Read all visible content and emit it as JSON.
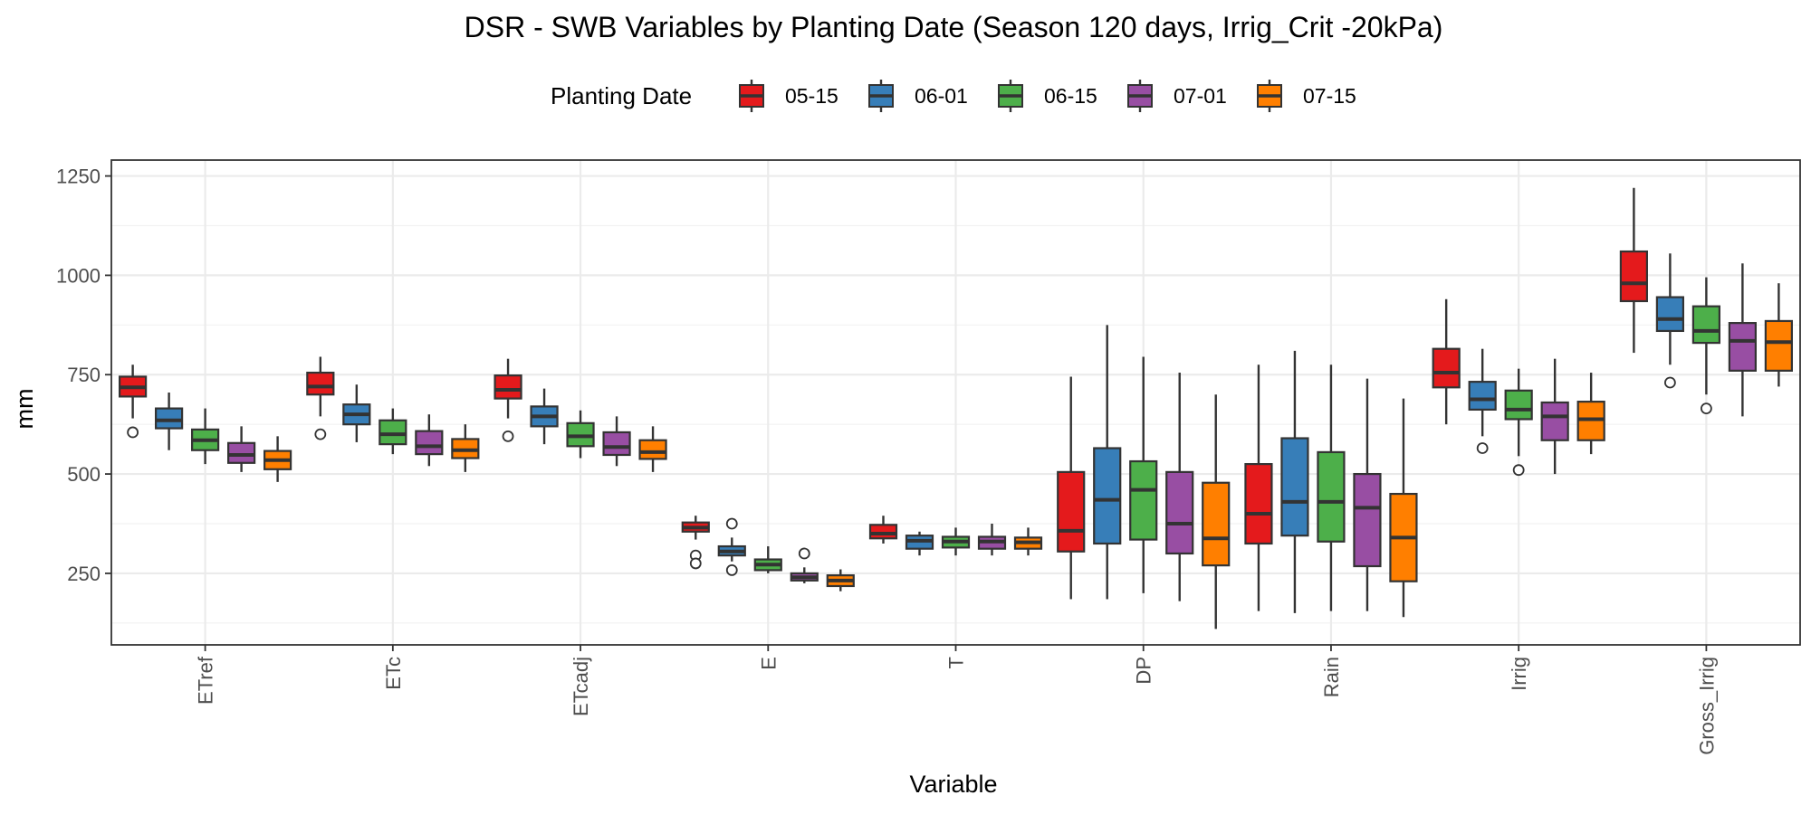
{
  "chart_data": {
    "type": "boxplot",
    "title": "DSR - SWB Variables by Planting Date (Season 120 days, Irrig_Crit -20kPa)",
    "xlabel": "Variable",
    "ylabel": "mm",
    "ylim": [
      70,
      1290
    ],
    "y_ticks": [
      250,
      500,
      750,
      1000,
      1250
    ],
    "y_tick_labels": [
      "250",
      "500",
      "750",
      "1000",
      "1250"
    ],
    "grid": true,
    "legend": {
      "title": "Planting Date",
      "position": "top"
    },
    "categories": [
      "ETref",
      "ETc",
      "ETcadj",
      "E",
      "T",
      "DP",
      "Rain",
      "Irrig",
      "Gross_Irrig"
    ],
    "colors": {
      "05-15": "#e41a1c",
      "06-01": "#377eb8",
      "06-15": "#4daf4a",
      "07-01": "#984ea3",
      "07-15": "#ff7f00"
    },
    "series": [
      {
        "name": "05-15",
        "boxes": [
          {
            "min": 640,
            "q1": 695,
            "median": 718,
            "q3": 745,
            "max": 775,
            "outliers": [
              605
            ]
          },
          {
            "min": 645,
            "q1": 700,
            "median": 720,
            "q3": 755,
            "max": 795,
            "outliers": [
              600
            ]
          },
          {
            "min": 640,
            "q1": 690,
            "median": 712,
            "q3": 748,
            "max": 790,
            "outliers": [
              595
            ]
          },
          {
            "min": 335,
            "q1": 355,
            "median": 365,
            "q3": 378,
            "max": 395,
            "outliers": [
              295,
              275
            ]
          },
          {
            "min": 325,
            "q1": 338,
            "median": 350,
            "q3": 372,
            "max": 395,
            "outliers": []
          },
          {
            "min": 185,
            "q1": 305,
            "median": 357,
            "q3": 505,
            "max": 745,
            "outliers": []
          },
          {
            "min": 155,
            "q1": 325,
            "median": 400,
            "q3": 525,
            "max": 775,
            "outliers": []
          },
          {
            "min": 625,
            "q1": 718,
            "median": 755,
            "q3": 815,
            "max": 940,
            "outliers": []
          },
          {
            "min": 805,
            "q1": 935,
            "median": 980,
            "q3": 1060,
            "max": 1220,
            "outliers": []
          }
        ]
      },
      {
        "name": "06-01",
        "boxes": [
          {
            "min": 560,
            "q1": 615,
            "median": 635,
            "q3": 665,
            "max": 705,
            "outliers": []
          },
          {
            "min": 580,
            "q1": 625,
            "median": 650,
            "q3": 675,
            "max": 725,
            "outliers": []
          },
          {
            "min": 575,
            "q1": 620,
            "median": 645,
            "q3": 670,
            "max": 715,
            "outliers": []
          },
          {
            "min": 280,
            "q1": 295,
            "median": 305,
            "q3": 318,
            "max": 340,
            "outliers": [
              375,
              258
            ]
          },
          {
            "min": 295,
            "q1": 312,
            "median": 332,
            "q3": 345,
            "max": 355,
            "outliers": []
          },
          {
            "min": 185,
            "q1": 325,
            "median": 435,
            "q3": 565,
            "max": 875,
            "outliers": []
          },
          {
            "min": 150,
            "q1": 345,
            "median": 430,
            "q3": 590,
            "max": 810,
            "outliers": []
          },
          {
            "min": 595,
            "q1": 662,
            "median": 688,
            "q3": 732,
            "max": 815,
            "outliers": [
              565
            ]
          },
          {
            "min": 775,
            "q1": 860,
            "median": 890,
            "q3": 945,
            "max": 1055,
            "outliers": [
              730
            ]
          }
        ]
      },
      {
        "name": "06-15",
        "boxes": [
          {
            "min": 525,
            "q1": 560,
            "median": 585,
            "q3": 612,
            "max": 665,
            "outliers": []
          },
          {
            "min": 550,
            "q1": 575,
            "median": 600,
            "q3": 635,
            "max": 665,
            "outliers": []
          },
          {
            "min": 540,
            "q1": 570,
            "median": 595,
            "q3": 628,
            "max": 660,
            "outliers": []
          },
          {
            "min": 250,
            "q1": 258,
            "median": 272,
            "q3": 285,
            "max": 318,
            "outliers": []
          },
          {
            "min": 295,
            "q1": 315,
            "median": 330,
            "q3": 342,
            "max": 365,
            "outliers": []
          },
          {
            "min": 200,
            "q1": 335,
            "median": 460,
            "q3": 532,
            "max": 795,
            "outliers": []
          },
          {
            "min": 155,
            "q1": 330,
            "median": 430,
            "q3": 555,
            "max": 775,
            "outliers": []
          },
          {
            "min": 545,
            "q1": 638,
            "median": 662,
            "q3": 710,
            "max": 765,
            "outliers": [
              510
            ]
          },
          {
            "min": 700,
            "q1": 830,
            "median": 860,
            "q3": 922,
            "max": 995,
            "outliers": [
              665
            ]
          }
        ]
      },
      {
        "name": "07-01",
        "boxes": [
          {
            "min": 505,
            "q1": 528,
            "median": 548,
            "q3": 578,
            "max": 620,
            "outliers": []
          },
          {
            "min": 520,
            "q1": 550,
            "median": 570,
            "q3": 608,
            "max": 650,
            "outliers": []
          },
          {
            "min": 520,
            "q1": 548,
            "median": 568,
            "q3": 605,
            "max": 645,
            "outliers": []
          },
          {
            "min": 225,
            "q1": 232,
            "median": 240,
            "q3": 250,
            "max": 265,
            "outliers": [
              300
            ]
          },
          {
            "min": 295,
            "q1": 312,
            "median": 330,
            "q3": 342,
            "max": 375,
            "outliers": []
          },
          {
            "min": 180,
            "q1": 300,
            "median": 375,
            "q3": 505,
            "max": 755,
            "outliers": []
          },
          {
            "min": 155,
            "q1": 268,
            "median": 415,
            "q3": 500,
            "max": 740,
            "outliers": []
          },
          {
            "min": 500,
            "q1": 585,
            "median": 645,
            "q3": 680,
            "max": 790,
            "outliers": []
          },
          {
            "min": 645,
            "q1": 760,
            "median": 835,
            "q3": 880,
            "max": 1030,
            "outliers": []
          }
        ]
      },
      {
        "name": "07-15",
        "boxes": [
          {
            "min": 480,
            "q1": 512,
            "median": 535,
            "q3": 558,
            "max": 595,
            "outliers": []
          },
          {
            "min": 505,
            "q1": 540,
            "median": 560,
            "q3": 588,
            "max": 625,
            "outliers": []
          },
          {
            "min": 505,
            "q1": 538,
            "median": 555,
            "q3": 585,
            "max": 620,
            "outliers": []
          },
          {
            "min": 205,
            "q1": 218,
            "median": 232,
            "q3": 245,
            "max": 260,
            "outliers": []
          },
          {
            "min": 295,
            "q1": 312,
            "median": 328,
            "q3": 340,
            "max": 365,
            "outliers": []
          },
          {
            "min": 110,
            "q1": 270,
            "median": 338,
            "q3": 478,
            "max": 700,
            "outliers": []
          },
          {
            "min": 140,
            "q1": 230,
            "median": 340,
            "q3": 450,
            "max": 690,
            "outliers": []
          },
          {
            "min": 550,
            "q1": 585,
            "median": 638,
            "q3": 682,
            "max": 755,
            "outliers": []
          },
          {
            "min": 720,
            "q1": 760,
            "median": 832,
            "q3": 885,
            "max": 980,
            "outliers": []
          }
        ]
      }
    ]
  }
}
